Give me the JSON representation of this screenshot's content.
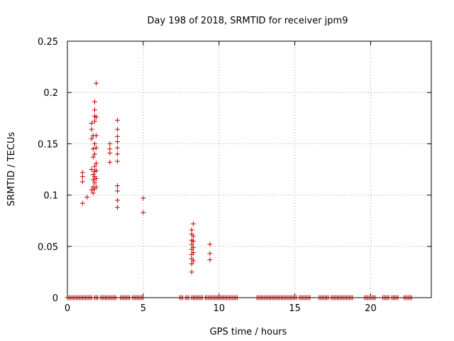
{
  "chart_data": {
    "type": "scatter",
    "title": "Day 198 of 2018, SRMTID for receiver jpm9",
    "xlabel": "GPS time / hours",
    "ylabel": "SRMTID / TECUs",
    "xlim": [
      0,
      24
    ],
    "ylim": [
      0,
      0.25
    ],
    "x_ticks": [
      0,
      5,
      10,
      15,
      20
    ],
    "x_tick_labels": [
      "0",
      "5",
      "10",
      "15",
      "20"
    ],
    "y_ticks": [
      0,
      0.05,
      0.1,
      0.15,
      0.2,
      0.25
    ],
    "y_tick_labels": [
      "0",
      "0.05",
      "0.1",
      "0.15",
      "0.2",
      "0.25"
    ],
    "grid": true,
    "marker": "plus",
    "series": [
      {
        "name": "SRMTID",
        "color": "#cc0000",
        "points": [
          [
            1.0,
            0.092
          ],
          [
            1.0,
            0.113
          ],
          [
            1.0,
            0.118
          ],
          [
            1.0,
            0.122
          ],
          [
            1.3,
            0.098
          ],
          [
            1.6,
            0.105
          ],
          [
            1.6,
            0.125
          ],
          [
            1.6,
            0.155
          ],
          [
            1.6,
            0.164
          ],
          [
            1.6,
            0.17
          ],
          [
            1.7,
            0.102
          ],
          [
            1.7,
            0.108
          ],
          [
            1.7,
            0.115
          ],
          [
            1.7,
            0.12
          ],
          [
            1.7,
            0.137
          ],
          [
            1.7,
            0.145
          ],
          [
            1.7,
            0.158
          ],
          [
            1.8,
            0.106
          ],
          [
            1.8,
            0.112
          ],
          [
            1.8,
            0.118
          ],
          [
            1.8,
            0.123
          ],
          [
            1.8,
            0.128
          ],
          [
            1.8,
            0.14
          ],
          [
            1.8,
            0.15
          ],
          [
            1.8,
            0.172
          ],
          [
            1.8,
            0.177
          ],
          [
            1.8,
            0.183
          ],
          [
            1.8,
            0.191
          ],
          [
            1.9,
            0.108
          ],
          [
            1.9,
            0.116
          ],
          [
            1.9,
            0.124
          ],
          [
            1.9,
            0.131
          ],
          [
            1.9,
            0.146
          ],
          [
            1.9,
            0.158
          ],
          [
            1.9,
            0.176
          ],
          [
            1.9,
            0.209
          ],
          [
            2.8,
            0.132
          ],
          [
            2.8,
            0.141
          ],
          [
            2.8,
            0.145
          ],
          [
            2.8,
            0.15
          ],
          [
            3.3,
            0.088
          ],
          [
            3.3,
            0.095
          ],
          [
            3.3,
            0.104
          ],
          [
            3.3,
            0.109
          ],
          [
            3.3,
            0.133
          ],
          [
            3.3,
            0.14
          ],
          [
            3.3,
            0.146
          ],
          [
            3.3,
            0.152
          ],
          [
            3.3,
            0.157
          ],
          [
            3.3,
            0.164
          ],
          [
            3.3,
            0.173
          ],
          [
            5.0,
            0.083
          ],
          [
            5.0,
            0.097
          ],
          [
            8.2,
            0.025
          ],
          [
            8.2,
            0.033
          ],
          [
            8.2,
            0.038
          ],
          [
            8.2,
            0.042
          ],
          [
            8.2,
            0.047
          ],
          [
            8.2,
            0.052
          ],
          [
            8.2,
            0.056
          ],
          [
            8.2,
            0.062
          ],
          [
            8.2,
            0.066
          ],
          [
            8.3,
            0.036
          ],
          [
            8.3,
            0.044
          ],
          [
            8.3,
            0.049
          ],
          [
            8.3,
            0.055
          ],
          [
            8.3,
            0.06
          ],
          [
            8.3,
            0.072
          ],
          [
            9.4,
            0.037
          ],
          [
            9.4,
            0.043
          ],
          [
            9.4,
            0.052
          ]
        ],
        "zero_runs": [
          [
            0.0,
            0.8
          ],
          [
            0.9,
            1.6
          ],
          [
            1.8,
            2.0
          ],
          [
            2.2,
            3.2
          ],
          [
            3.5,
            4.1
          ],
          [
            4.3,
            5.0
          ],
          [
            7.4,
            7.6
          ],
          [
            7.8,
            8.0
          ],
          [
            8.2,
            8.9
          ],
          [
            9.1,
            11.2
          ],
          [
            12.5,
            15.1
          ],
          [
            15.3,
            16.0
          ],
          [
            16.6,
            17.2
          ],
          [
            17.4,
            18.4
          ],
          [
            18.5,
            18.8
          ],
          [
            19.6,
            20.3
          ],
          [
            20.8,
            21.2
          ],
          [
            21.4,
            21.8
          ],
          [
            22.2,
            22.7
          ]
        ]
      }
    ]
  }
}
